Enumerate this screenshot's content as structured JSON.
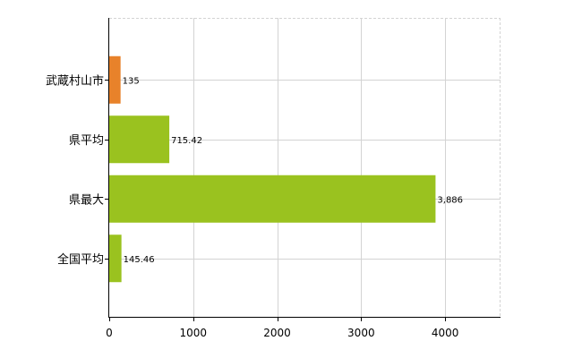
{
  "chart_data": {
    "type": "bar",
    "orientation": "horizontal",
    "categories": [
      "武蔵村山市",
      "県平均",
      "県最大",
      "全国平均"
    ],
    "values": [
      135,
      715.42,
      3886,
      145.46
    ],
    "value_labels": [
      "135",
      "715.42",
      "3,886",
      "145.46"
    ],
    "bar_colors": [
      "#e8822a",
      "#9ac21f",
      "#9ac21f",
      "#9ac21f"
    ],
    "x_ticks": [
      0,
      1000,
      2000,
      3000,
      4000
    ],
    "x_tick_labels": [
      "0",
      "1000",
      "2000",
      "3000",
      "4000"
    ],
    "xlim": [
      0,
      4660
    ],
    "grid": true,
    "legend": "none"
  }
}
